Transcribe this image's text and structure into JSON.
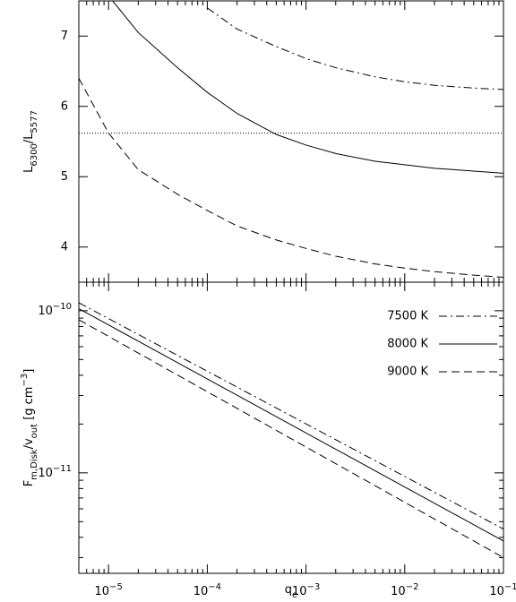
{
  "chart_data": [
    {
      "type": "line",
      "ylabel": [
        {
          "text": "L"
        },
        {
          "text": "6300",
          "shift": "sub"
        },
        {
          "text": "/L"
        },
        {
          "text": "5577",
          "shift": "sub"
        }
      ],
      "xlog": true,
      "ylog": false,
      "xlim": [
        5e-06,
        0.1
      ],
      "ylim": [
        3.5,
        7.5
      ],
      "xticks": [
        1e-05,
        0.0001,
        0.001,
        0.01,
        0.1
      ],
      "yticks": [
        4,
        5,
        6,
        7
      ],
      "hline": 5.62,
      "series": [
        {
          "color": "#000000",
          "dash": "dashdot",
          "x": [
            0.0001,
            0.0002,
            0.0005,
            0.001,
            0.002,
            0.005,
            0.01,
            0.02,
            0.05,
            0.1
          ],
          "values": [
            7.4,
            7.1,
            6.85,
            6.68,
            6.55,
            6.42,
            6.35,
            6.3,
            6.26,
            6.24
          ]
        },
        {
          "color": "#000000",
          "dash": "solid",
          "x": [
            1.1e-05,
            2e-05,
            5e-05,
            0.0001,
            0.0002,
            0.0005,
            0.001,
            0.002,
            0.005,
            0.01,
            0.02,
            0.05,
            0.1
          ],
          "values": [
            7.5,
            7.05,
            6.55,
            6.2,
            5.9,
            5.6,
            5.45,
            5.33,
            5.22,
            5.17,
            5.12,
            5.08,
            5.05
          ]
        },
        {
          "color": "#000000",
          "dash": "dashed",
          "x": [
            5e-06,
            1e-05,
            2e-05,
            5e-05,
            0.0001,
            0.0002,
            0.0005,
            0.001,
            0.002,
            0.005,
            0.01,
            0.02,
            0.05,
            0.1
          ],
          "values": [
            6.4,
            5.62,
            5.1,
            4.75,
            4.52,
            4.3,
            4.1,
            3.98,
            3.87,
            3.76,
            3.7,
            3.65,
            3.6,
            3.57
          ]
        }
      ]
    },
    {
      "type": "line",
      "ylabel": [
        {
          "text": "F"
        },
        {
          "text": "m,Disk",
          "shift": "sub"
        },
        {
          "text": "/v"
        },
        {
          "text": "out",
          "shift": "sub"
        },
        {
          "text": " [g cm"
        },
        {
          "text": "−3",
          "shift": "super"
        },
        {
          "text": "]"
        }
      ],
      "xlabel": [
        {
          "text": "q"
        },
        {
          "text": "e",
          "shift": "sub"
        }
      ],
      "xlog": true,
      "ylog": true,
      "xlim": [
        5e-06,
        0.1
      ],
      "ylim": [
        2.4e-12,
        1.5e-10
      ],
      "xticks": [
        {
          "value": 1e-05,
          "label": "10",
          "exp": "−5"
        },
        {
          "value": 0.0001,
          "label": "10",
          "exp": "−4"
        },
        {
          "value": 0.001,
          "label": "10",
          "exp": "−3"
        },
        {
          "value": 0.01,
          "label": "10",
          "exp": "−2"
        },
        {
          "value": 0.1,
          "label": "10",
          "exp": "−1"
        }
      ],
      "yticks": [
        {
          "value": 1e-11,
          "label": "10",
          "exp": "−11"
        },
        {
          "value": 1e-10,
          "label": "10",
          "exp": "−10"
        }
      ],
      "legend": "upper right",
      "series": [
        {
          "name": "7500 K",
          "color": "#000000",
          "dash": "dashdot",
          "x": [
            5e-06,
            0.1
          ],
          "values": [
            1.12e-10,
            4.5e-12
          ]
        },
        {
          "name": "8000 K",
          "color": "#000000",
          "dash": "solid",
          "x": [
            5e-06,
            0.1
          ],
          "values": [
            1.03e-10,
            3.8e-12
          ]
        },
        {
          "name": "9000 K",
          "color": "#000000",
          "dash": "dashed",
          "x": [
            5e-06,
            0.1
          ],
          "values": [
            8.8e-11,
            3e-12
          ]
        }
      ]
    }
  ]
}
